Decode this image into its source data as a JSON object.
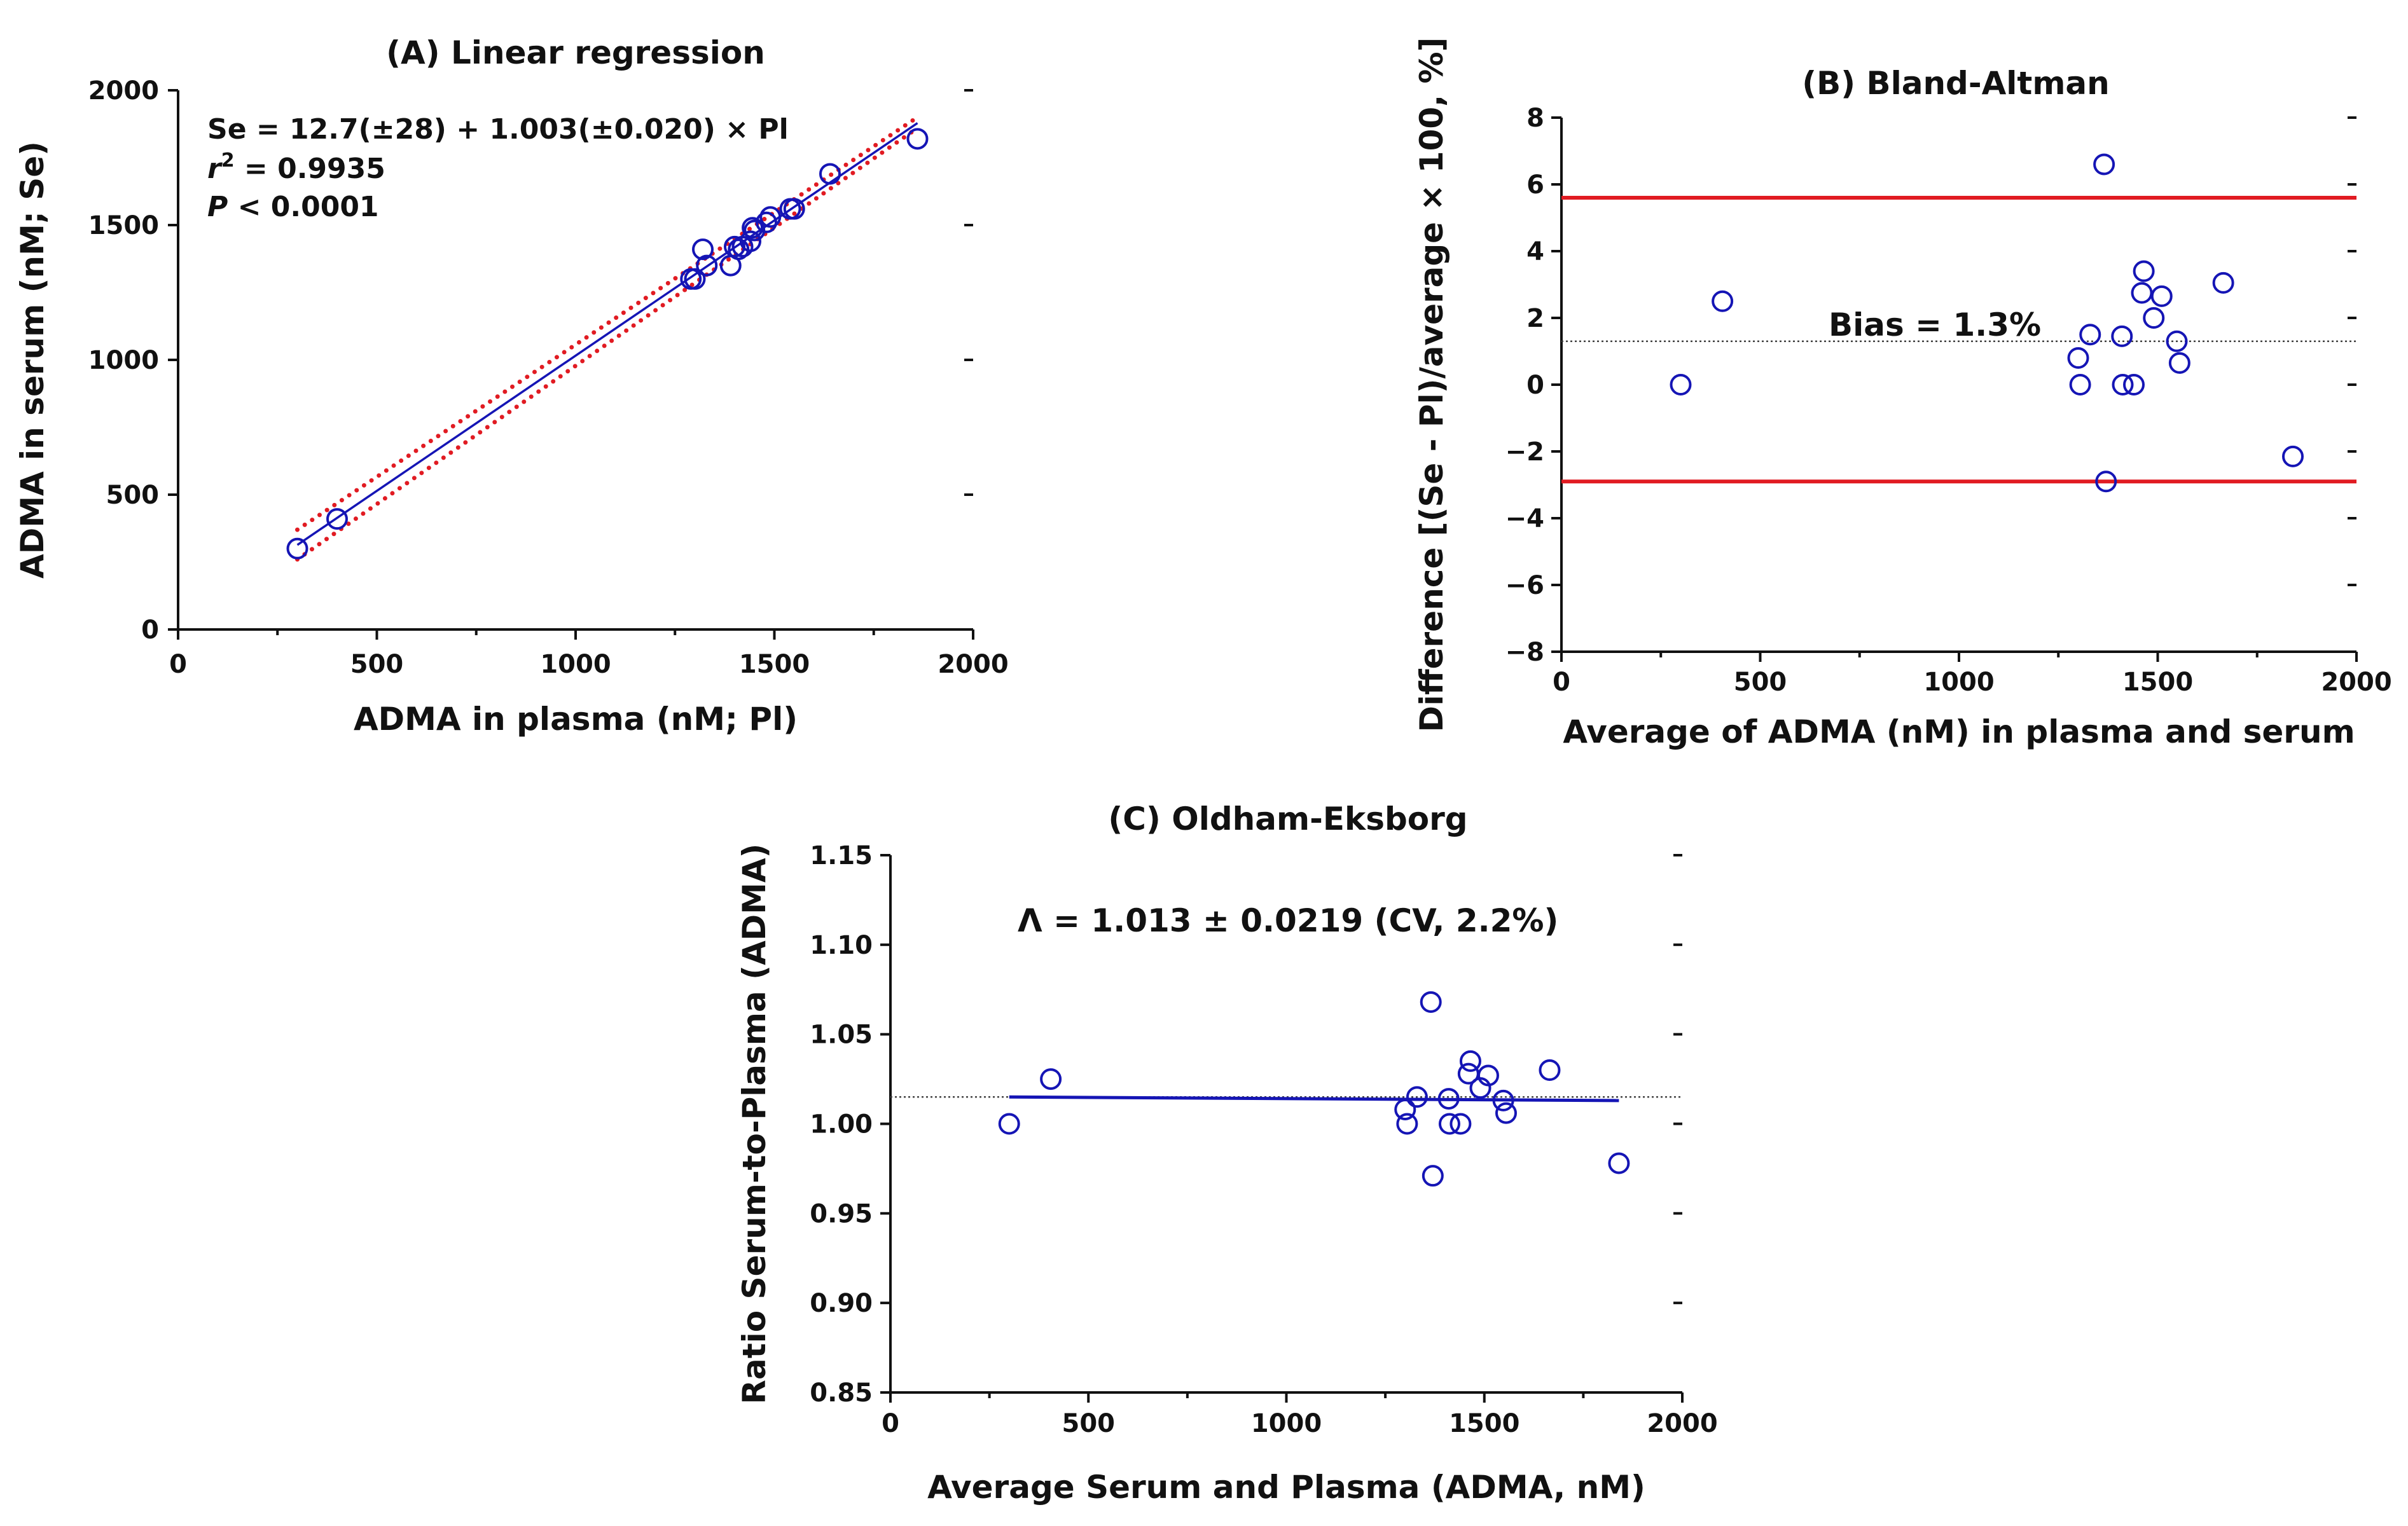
{
  "colors": {
    "points": "#1515b5",
    "fit_line": "#1515b5",
    "ci_dots": "#e11b22",
    "limit_lines": "#e11b22",
    "reference": "#444444",
    "axes": "#111111"
  },
  "chart_data": [
    {
      "id": "A",
      "type": "scatter",
      "title": "(A) Linear regression",
      "xlabel": "ADMA in plasma (nM; Pl)",
      "ylabel": "ADMA in serum (nM; Se)",
      "xlim": [
        0,
        2000
      ],
      "ylim": [
        0,
        2000
      ],
      "xticks": [
        0,
        500,
        1000,
        1500,
        2000
      ],
      "yticks": [
        0,
        500,
        1000,
        1500,
        2000
      ],
      "xtick_labels": [
        "0",
        "500",
        "1000",
        "1500",
        "2000"
      ],
      "ytick_labels": [
        "0",
        "500",
        "1000",
        "1500",
        "2000"
      ],
      "annotation": {
        "equation": "Se = 12.7(±28) + 1.003(±0.020) × Pl",
        "r2_symbol": "r",
        "r2_sup": "2",
        "r2_value": " = 0.9935",
        "p_symbol": "P",
        "p_value": " < 0.0001"
      },
      "points": {
        "x": [
          300,
          400,
          1290,
          1300,
          1320,
          1330,
          1390,
          1400,
          1410,
          1420,
          1440,
          1445,
          1450,
          1480,
          1490,
          1540,
          1550,
          1640,
          1860
        ],
        "y": [
          300,
          410,
          1300,
          1300,
          1410,
          1350,
          1350,
          1420,
          1410,
          1420,
          1440,
          1490,
          1480,
          1510,
          1530,
          1560,
          1560,
          1690,
          1820
        ]
      },
      "fit_line": {
        "x": [
          300,
          1860
        ],
        "y": [
          313.6,
          1878.3
        ]
      },
      "ci_upper": {
        "x": [
          300,
          1860
        ],
        "y": [
          370,
          1900
        ]
      },
      "ci_lower": {
        "x": [
          300,
          1860
        ],
        "y": [
          260,
          1860
        ]
      }
    },
    {
      "id": "B",
      "type": "scatter",
      "title": "(B) Bland-Altman",
      "xlabel": "Average of ADMA (nM) in plasma and serum",
      "ylabel": "Difference [(Se - Pl)/average × 100, %]",
      "xlim": [
        0,
        2000
      ],
      "ylim": [
        -8,
        8
      ],
      "xticks": [
        0,
        500,
        1000,
        1500,
        2000
      ],
      "yticks": [
        -8,
        -6,
        -4,
        -2,
        0,
        2,
        4,
        6,
        8
      ],
      "xtick_labels": [
        "0",
        "500",
        "1000",
        "1500",
        "2000"
      ],
      "ytick_labels": [
        "−8",
        "−6",
        "−4",
        "−2",
        "0",
        "2",
        "4",
        "6",
        "8"
      ],
      "bias_label": "Bias = 1.3%",
      "bias": 1.3,
      "upper_limit": 5.6,
      "lower_limit": -2.9,
      "points": {
        "x": [
          300,
          405,
          1300,
          1305,
          1330,
          1365,
          1370,
          1410,
          1412,
          1440,
          1460,
          1465,
          1490,
          1510,
          1548,
          1555,
          1665,
          1840
        ],
        "y": [
          0,
          2.5,
          0.8,
          0,
          1.5,
          6.6,
          -2.9,
          1.45,
          0,
          0,
          2.75,
          3.4,
          2.0,
          2.65,
          1.3,
          0.65,
          3.05,
          -2.15
        ]
      }
    },
    {
      "id": "C",
      "type": "scatter",
      "title": "(C) Oldham-Eksborg",
      "xlabel": "Average Serum and Plasma (ADMA, nM)",
      "ylabel": "Ratio Serum-to-Plasma (ADMA)",
      "xlim": [
        0,
        2000
      ],
      "ylim": [
        0.85,
        1.15
      ],
      "xticks": [
        0,
        500,
        1000,
        1500,
        2000
      ],
      "yticks": [
        0.85,
        0.9,
        0.95,
        1.0,
        1.05,
        1.1,
        1.15
      ],
      "xtick_labels": [
        "0",
        "500",
        "1000",
        "1500",
        "2000"
      ],
      "ytick_labels": [
        "0.85",
        "0.90",
        "0.95",
        "1.00",
        "1.05",
        "1.10",
        "1.15"
      ],
      "annotation": "Λ = 1.013 ± 0.0219 (CV, 2.2%)",
      "reference": 1.015,
      "trend_line": {
        "x": [
          300,
          1840
        ],
        "y": [
          1.015,
          1.013
        ]
      },
      "points": {
        "x": [
          300,
          405,
          1300,
          1305,
          1330,
          1365,
          1370,
          1410,
          1412,
          1440,
          1460,
          1465,
          1490,
          1510,
          1548,
          1555,
          1665,
          1840
        ],
        "y": [
          1.0,
          1.025,
          1.008,
          1.0,
          1.015,
          1.068,
          0.971,
          1.014,
          1.0,
          1.0,
          1.028,
          1.035,
          1.02,
          1.027,
          1.013,
          1.006,
          1.03,
          0.978
        ]
      }
    }
  ]
}
